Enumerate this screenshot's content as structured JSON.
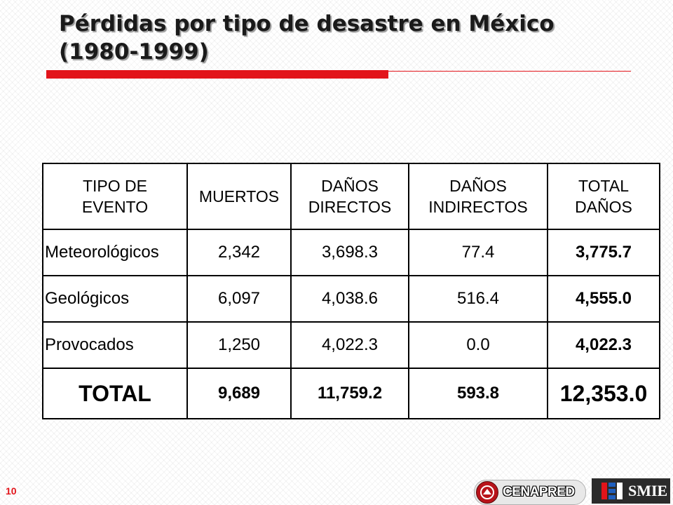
{
  "slide": {
    "title_line1": "Pérdidas por tipo de desastre en México",
    "title_line2": "(1980-1999)",
    "page_number": "10"
  },
  "table": {
    "headers": {
      "event": [
        "TIPO DE",
        "EVENTO"
      ],
      "deaths": [
        "MUERTOS"
      ],
      "direct": [
        "DAÑOS",
        "DIRECTOS"
      ],
      "indirect": [
        "DAÑOS",
        "INDIRECTOS"
      ],
      "total": [
        "TOTAL",
        "DAÑOS"
      ]
    },
    "rows": [
      {
        "event": "Meteorológicos",
        "deaths": "2,342",
        "direct": "3,698.3",
        "indirect": "77.4",
        "total": "3,775.7"
      },
      {
        "event": "Geológicos",
        "deaths": "6,097",
        "direct": "4,038.6",
        "indirect": "516.4",
        "total": "4,555.0"
      },
      {
        "event": "Provocados",
        "deaths": "1,250",
        "direct": "4,022.3",
        "indirect": "0.0",
        "total": "4,022.3"
      }
    ],
    "total_row": {
      "event": "TOTAL",
      "deaths": "9,689",
      "direct": "11,759.2",
      "indirect": "593.8",
      "total": "12,353.0"
    }
  },
  "logos": {
    "cenapred": "CENAPRED",
    "smie": "SMIE"
  },
  "colors": {
    "accent_red": "#e2141a",
    "text": "#000000"
  }
}
